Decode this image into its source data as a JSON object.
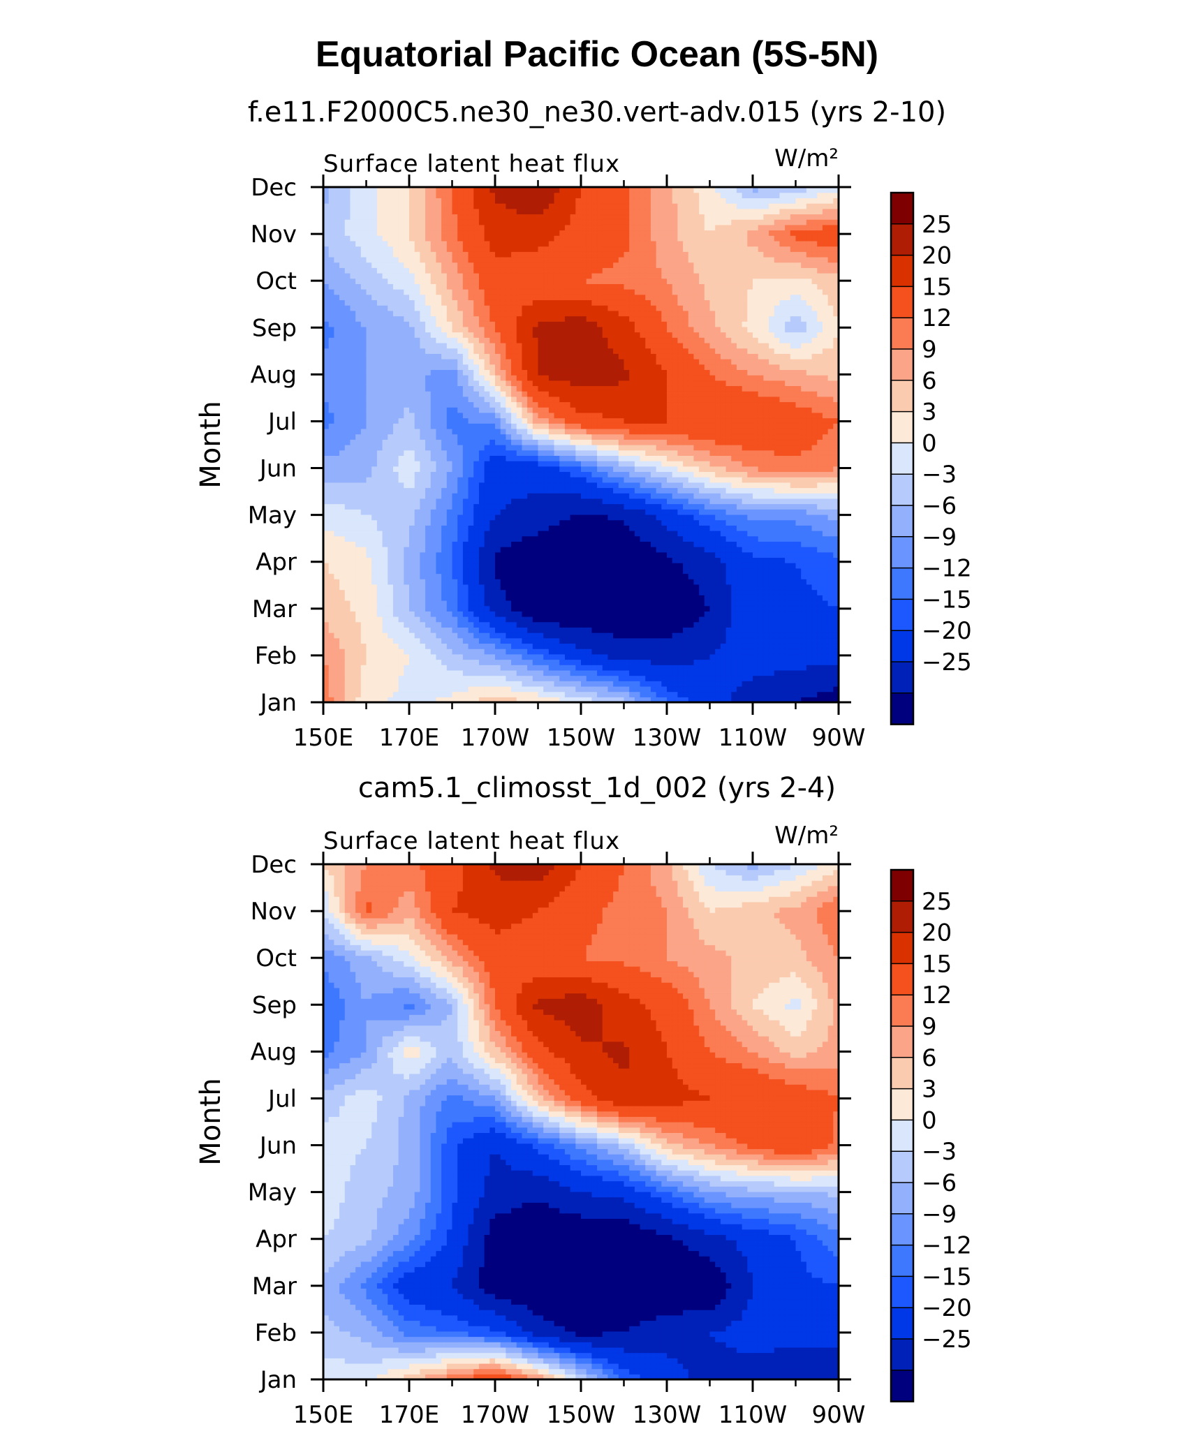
{
  "title": "Equatorial Pacific Ocean (5S-5N)",
  "chart_data": [
    {
      "type": "heatmap",
      "title": "f.e11.F2000C5.ne30_ne30.vert-adv.015 (yrs 2-10)",
      "subtitle": "Surface latent heat flux",
      "units": "W/m²",
      "ylabel": "Month",
      "x_ticklabels": [
        "150E",
        "170E",
        "170W",
        "150W",
        "130W",
        "110W",
        "90W"
      ],
      "y_ticklabels": [
        "Jan",
        "Feb",
        "Mar",
        "Apr",
        "May",
        "Jun",
        "Jul",
        "Aug",
        "Sep",
        "Oct",
        "Nov",
        "Dec"
      ],
      "x": [
        "150E",
        "160E",
        "170E",
        "180",
        "170W",
        "160W",
        "150W",
        "140W",
        "130W",
        "120W",
        "110W",
        "100W",
        "90W"
      ],
      "y": [
        "Jan",
        "Feb",
        "Mar",
        "Apr",
        "May",
        "Jun",
        "Jul",
        "Aug",
        "Sep",
        "Oct",
        "Nov",
        "Dec"
      ],
      "z": [
        [
          14,
          4,
          2,
          4,
          8,
          6,
          2,
          -2,
          -12,
          -18,
          -22,
          -25,
          -28
        ],
        [
          12,
          6,
          3,
          -2,
          -6,
          -12,
          -18,
          -22,
          -22,
          -20,
          -18,
          -18,
          -18
        ],
        [
          8,
          5,
          -3,
          -10,
          -22,
          -30,
          -30,
          -30,
          -30,
          -25,
          -15,
          -16,
          -15
        ],
        [
          6,
          4,
          -4,
          -12,
          -26,
          -30,
          -30,
          -30,
          -26,
          -22,
          -16,
          -15,
          -13
        ],
        [
          2,
          0,
          -2,
          -10,
          -20,
          -22,
          -26,
          -24,
          -18,
          -12,
          -8,
          -8,
          -5
        ],
        [
          -5,
          -4,
          2,
          -6,
          -18,
          -18,
          -12,
          -4,
          2,
          8,
          12,
          14,
          12
        ],
        [
          -10,
          -6,
          -2,
          -10,
          -8,
          10,
          18,
          20,
          20,
          20,
          20,
          18,
          15
        ],
        [
          -8,
          -6,
          -5,
          -8,
          8,
          25,
          28,
          26,
          20,
          15,
          12,
          10,
          8
        ],
        [
          -10,
          -6,
          -4,
          6,
          15,
          26,
          28,
          22,
          15,
          10,
          5,
          -2,
          6
        ],
        [
          -6,
          -2,
          2,
          10,
          18,
          16,
          15,
          14,
          12,
          8,
          6,
          5,
          8
        ],
        [
          -2,
          2,
          6,
          14,
          22,
          22,
          18,
          16,
          10,
          6,
          10,
          16,
          18
        ],
        [
          -4,
          2,
          6,
          15,
          26,
          30,
          20,
          16,
          10,
          4,
          -4,
          -2,
          2
        ]
      ],
      "colorbar_labels": [
        "25",
        "20",
        "15",
        "12",
        "9",
        "6",
        "3",
        "0",
        "-3",
        "-6",
        "-9",
        "-12",
        "-15",
        "-20",
        "-25"
      ]
    },
    {
      "type": "heatmap",
      "title": "cam5.1_climosst_1d_002 (yrs 2-4)",
      "subtitle": "Surface latent heat flux",
      "units": "W/m²",
      "ylabel": "Month",
      "x_ticklabels": [
        "150E",
        "170E",
        "170W",
        "150W",
        "130W",
        "110W",
        "90W"
      ],
      "y_ticklabels": [
        "Jan",
        "Feb",
        "Mar",
        "Apr",
        "May",
        "Jun",
        "Jul",
        "Aug",
        "Sep",
        "Oct",
        "Nov",
        "Dec"
      ],
      "x": [
        "150E",
        "160E",
        "170E",
        "180",
        "170W",
        "160W",
        "150W",
        "140W",
        "130W",
        "120W",
        "110W",
        "100W",
        "90W"
      ],
      "y": [
        "Jan",
        "Feb",
        "Mar",
        "Apr",
        "May",
        "Jun",
        "Jul",
        "Aug",
        "Sep",
        "Oct",
        "Nov",
        "Dec"
      ],
      "z": [
        [
          2,
          2,
          8,
          14,
          20,
          12,
          0,
          -12,
          -18,
          -22,
          -22,
          -25,
          -25
        ],
        [
          -2,
          -4,
          -10,
          -12,
          -14,
          -22,
          -26,
          -25,
          -22,
          -20,
          -18,
          -18,
          -18
        ],
        [
          -4,
          -10,
          -18,
          -20,
          -28,
          -30,
          -30,
          -30,
          -30,
          -30,
          -20,
          -16,
          -15
        ],
        [
          0,
          -2,
          -8,
          -16,
          -28,
          -30,
          -30,
          -30,
          -26,
          -22,
          -18,
          -15,
          -10
        ],
        [
          2,
          -2,
          -4,
          -14,
          -22,
          -24,
          -20,
          -18,
          -12,
          -6,
          -4,
          -4,
          -2
        ],
        [
          2,
          0,
          -4,
          -14,
          -20,
          -14,
          -8,
          -2,
          8,
          12,
          16,
          20,
          14
        ],
        [
          -2,
          2,
          -4,
          -10,
          -6,
          8,
          18,
          24,
          22,
          20,
          20,
          18,
          15
        ],
        [
          -10,
          -6,
          5,
          -2,
          8,
          18,
          24,
          26,
          20,
          15,
          12,
          8,
          10
        ],
        [
          -12,
          -6,
          -10,
          -3,
          15,
          26,
          28,
          22,
          18,
          12,
          6,
          2,
          10
        ],
        [
          -8,
          -4,
          2,
          10,
          18,
          16,
          15,
          14,
          12,
          10,
          8,
          8,
          12
        ],
        [
          0,
          16,
          10,
          20,
          22,
          20,
          16,
          14,
          12,
          6,
          8,
          10,
          15
        ],
        [
          6,
          12,
          14,
          18,
          26,
          28,
          20,
          15,
          10,
          0,
          -4,
          0,
          5
        ]
      ],
      "colorbar_labels": [
        "25",
        "20",
        "15",
        "12",
        "9",
        "6",
        "3",
        "0",
        "-3",
        "-6",
        "-9",
        "-12",
        "-15",
        "-20",
        "-25"
      ]
    }
  ],
  "colors": {
    "levels": [
      -25,
      -20,
      -15,
      -12,
      -9,
      -6,
      -3,
      0,
      3,
      6,
      9,
      12,
      15,
      20,
      25
    ],
    "palette": [
      "#00007f",
      "#0021b8",
      "#0037e6",
      "#1d58ff",
      "#3e78ff",
      "#6a94ff",
      "#92b0fc",
      "#b6cbfb",
      "#d9e6fb",
      "#fce9d8",
      "#fbcbb0",
      "#fba487",
      "#fb7b52",
      "#f4511e",
      "#d93200",
      "#b01d05",
      "#7f0000"
    ]
  }
}
